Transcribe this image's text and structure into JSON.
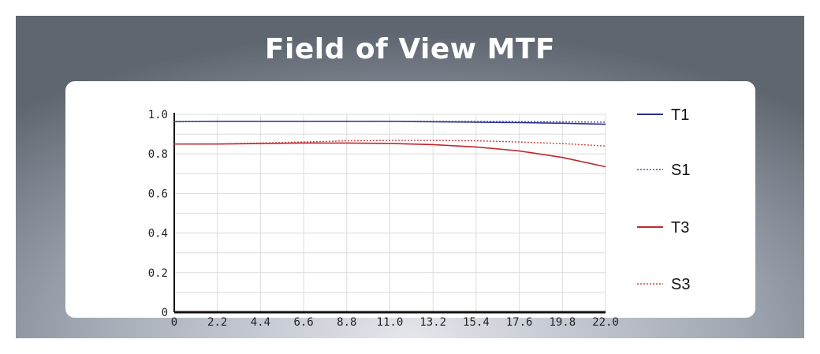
{
  "header": {
    "title": "Field of View MTF"
  },
  "chart_data": {
    "type": "line",
    "title": "Field of View MTF",
    "xlabel": "",
    "ylabel": "",
    "xlim": [
      0,
      22
    ],
    "ylim": [
      0,
      1
    ],
    "x_ticks": [
      "0",
      "2.2",
      "4.4",
      "6.6",
      "8.8",
      "11.0",
      "13.2",
      "15.4",
      "17.6",
      "19.8",
      "22.0"
    ],
    "y_ticks": [
      "0",
      "0.2",
      "0.4",
      "0.6",
      "0.8",
      "1.0"
    ],
    "grid": true,
    "legend_position": "right",
    "series": [
      {
        "name": "T1",
        "color": "#2a2f8f",
        "style": "solid",
        "x": [
          0,
          2.2,
          4.4,
          6.6,
          8.8,
          11.0,
          13.2,
          15.4,
          17.6,
          19.8,
          22.0
        ],
        "y": [
          0.963,
          0.964,
          0.964,
          0.964,
          0.964,
          0.964,
          0.962,
          0.96,
          0.958,
          0.955,
          0.95
        ]
      },
      {
        "name": "S1",
        "color": "#4a4fb0",
        "style": "dotted",
        "x": [
          0,
          2.2,
          4.4,
          6.6,
          8.8,
          11.0,
          13.2,
          15.4,
          17.6,
          19.8,
          22.0
        ],
        "y": [
          0.963,
          0.964,
          0.964,
          0.964,
          0.964,
          0.965,
          0.965,
          0.964,
          0.963,
          0.962,
          0.96
        ]
      },
      {
        "name": "T3",
        "color": "#c0282d",
        "style": "solid",
        "x": [
          0,
          2.2,
          4.4,
          6.6,
          8.8,
          11.0,
          13.2,
          15.4,
          17.6,
          19.8,
          22.0
        ],
        "y": [
          0.85,
          0.85,
          0.852,
          0.855,
          0.855,
          0.853,
          0.847,
          0.835,
          0.815,
          0.782,
          0.735
        ]
      },
      {
        "name": "S3",
        "color": "#d04040",
        "style": "dotted",
        "x": [
          0,
          2.2,
          4.4,
          6.6,
          8.8,
          11.0,
          13.2,
          15.4,
          17.6,
          19.8,
          22.0
        ],
        "y": [
          0.85,
          0.851,
          0.855,
          0.86,
          0.866,
          0.868,
          0.868,
          0.866,
          0.86,
          0.852,
          0.84
        ]
      }
    ]
  }
}
